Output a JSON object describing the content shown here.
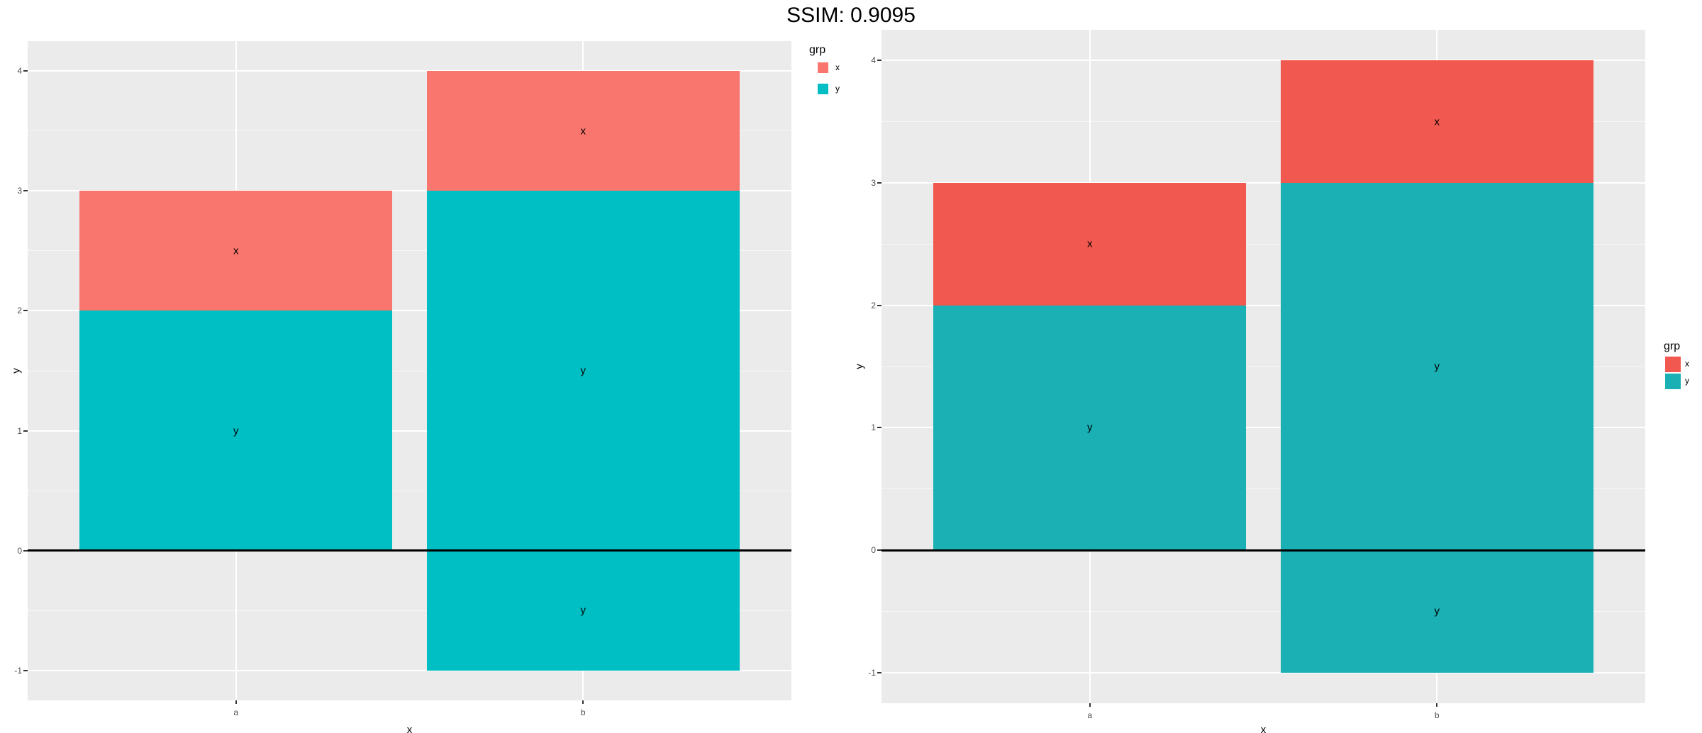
{
  "title": "SSIM: 0.9095",
  "panel_background": "#EBEBEB",
  "grid_color": "#FFFFFF",
  "zero_line_color": "#000000",
  "tick_text_color": "#4D4D4D",
  "chart_data": [
    {
      "id": "left",
      "position": "left",
      "type": "bar",
      "stacked": true,
      "xlabel": "x",
      "ylabel": "y",
      "categories": [
        "a",
        "b"
      ],
      "series": [
        {
          "name": "x",
          "values": [
            1,
            1
          ]
        },
        {
          "name": "y",
          "values": [
            2,
            3
          ]
        },
        {
          "name": "y",
          "values": [
            0,
            -1
          ]
        }
      ],
      "segments": [
        {
          "category": "a",
          "grp": "y",
          "from": 0,
          "to": 2,
          "label": "y"
        },
        {
          "category": "a",
          "grp": "x",
          "from": 2,
          "to": 3,
          "label": "x"
        },
        {
          "category": "b",
          "grp": "y",
          "from": 0,
          "to": 3,
          "label": "y"
        },
        {
          "category": "b",
          "grp": "x",
          "from": 3,
          "to": 4,
          "label": "x"
        },
        {
          "category": "b",
          "grp": "y",
          "from": -1,
          "to": 0,
          "label": "y"
        }
      ],
      "colors": {
        "x": "#F8766D",
        "y": "#00BFC4"
      },
      "y_ticks": [
        "4",
        "3",
        "2",
        "1",
        "0",
        "-1"
      ],
      "x_ticks": [
        "a",
        "b"
      ],
      "ylim": [
        -1.25,
        4.25
      ],
      "bar_width": 0.9,
      "hline": 0,
      "grid": true,
      "legend": {
        "title": "grp",
        "position": "top-right",
        "entries": [
          {
            "label": "x",
            "color": "#F8766D"
          },
          {
            "label": "y",
            "color": "#00BFC4"
          }
        ]
      }
    },
    {
      "id": "right",
      "position": "right",
      "type": "bar",
      "stacked": true,
      "xlabel": "x",
      "ylabel": "y",
      "categories": [
        "a",
        "b"
      ],
      "series": [
        {
          "name": "x",
          "values": [
            1,
            1
          ]
        },
        {
          "name": "y",
          "values": [
            2,
            3
          ]
        },
        {
          "name": "y",
          "values": [
            0,
            -1
          ]
        }
      ],
      "segments": [
        {
          "category": "a",
          "grp": "y",
          "from": 0,
          "to": 2,
          "label": "y"
        },
        {
          "category": "a",
          "grp": "x",
          "from": 2,
          "to": 3,
          "label": "x"
        },
        {
          "category": "b",
          "grp": "y",
          "from": 0,
          "to": 3,
          "label": "y"
        },
        {
          "category": "b",
          "grp": "x",
          "from": 3,
          "to": 4,
          "label": "x"
        },
        {
          "category": "b",
          "grp": "y",
          "from": -1,
          "to": 0,
          "label": "y"
        }
      ],
      "colors": {
        "x": "#F1584F",
        "y": "#1AB0B4"
      },
      "y_ticks": [
        "4",
        "3",
        "2",
        "1",
        "0",
        "-1"
      ],
      "x_ticks": [
        "a",
        "b"
      ],
      "ylim": [
        -1.25,
        4.25
      ],
      "bar_width": 0.9,
      "hline": 0,
      "grid": true,
      "legend": {
        "title": "grp",
        "position": "middle-right",
        "entries": [
          {
            "label": "x",
            "color": "#F1584F"
          },
          {
            "label": "y",
            "color": "#1AB0B4"
          }
        ]
      }
    }
  ]
}
